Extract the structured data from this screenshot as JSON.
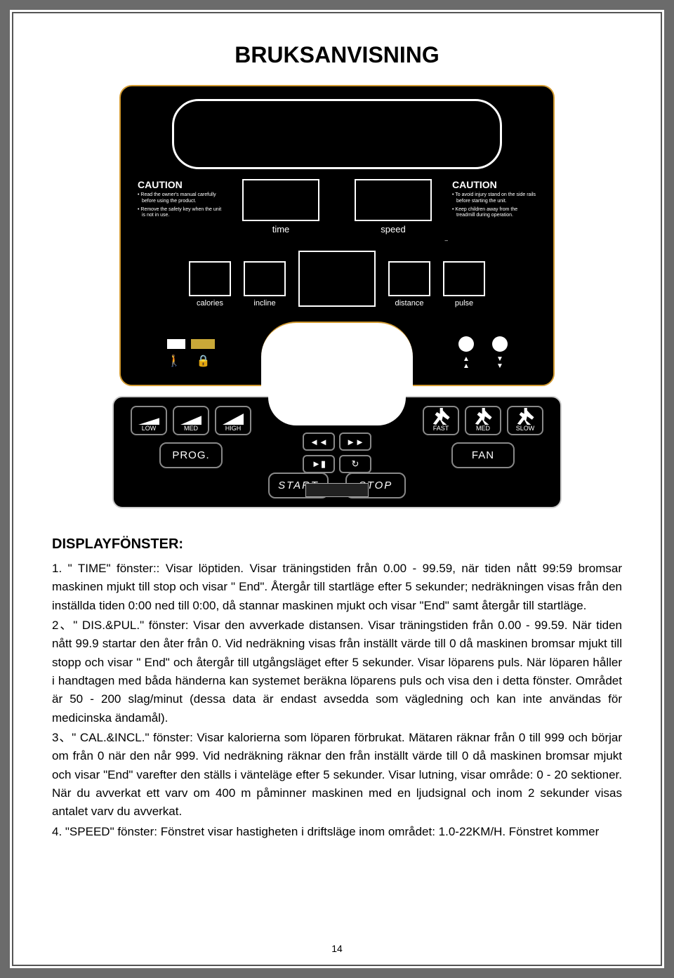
{
  "doc": {
    "title": "BRUKSANVISNING",
    "page_number": "14",
    "section_head": "DISPLAYFÖNSTER:"
  },
  "console": {
    "caution_left_title": "CAUTION",
    "caution_left_b1": "• Read the owner's manual carefully before using the product.",
    "caution_left_b2": "• Remove the safety key when the unit is not in use.",
    "caution_right_title": "CAUTION",
    "caution_right_b1": "• To avoid injury stand on the side rails before starting the unit.",
    "caution_right_b2": "• Keep children away from the treadmill during operation.",
    "label_time": "time",
    "label_speed": "speed",
    "label_calories": "calories",
    "label_incline": "incline",
    "label_distance": "distance",
    "label_pulse": "pulse"
  },
  "panel": {
    "incline_low": "LOW",
    "incline_med": "MED",
    "incline_high": "HIGH",
    "prog": "PROG.",
    "start": "START",
    "stop": "STOP",
    "fan": "FAN",
    "speed_fast": "FAST",
    "speed_med": "MED",
    "speed_slow": "SLOW",
    "media_rew": "◄◄",
    "media_ff": "►►",
    "media_play": "►▮",
    "media_loop": "↻"
  },
  "paragraphs": {
    "p1": "1. \" TIME\" fönster:: Visar löptiden. Visar träningstiden från 0.00 - 99.59, när tiden nått 99:59 bromsar maskinen mjukt till stop och visar \" End\". Återgår till startläge efter 5 sekunder; nedräkningen visas från den inställda tiden 0:00 ned till 0:00, då stannar maskinen mjukt och visar \"End\" samt återgår till startläge.",
    "p2": "2、\" DIS.&PUL.\" fönster: Visar den avverkade distansen. Visar träningstiden från 0.00 - 99.59. När tiden nått 99.9 startar den åter från 0. Vid nedräkning visas från inställt värde till 0 då maskinen bromsar mjukt till stopp och visar \" End\" och återgår till utgångsläget efter 5 sekunder. Visar löparens puls. När löparen håller i handtagen med båda händerna kan systemet beräkna löparens puls och visa den i detta fönster. Området är 50 - 200 slag/minut (dessa data är endast avsedda som vägledning och kan inte användas för medicinska ändamål).",
    "p3": "3、\" CAL.&INCL.\" fönster: Visar kalorierna som löparen förbrukat. Mätaren räknar från 0 till 999 och börjar om från 0 när den når 999. Vid nedräkning räknar den från inställt värde till 0 då maskinen bromsar mjukt och visar \"End\" varefter den ställs i vänteläge efter 5 sekunder. Visar lutning, visar område: 0 - 20 sektioner. När du avverkat ett varv om 400 m påminner maskinen med en ljudsignal och inom 2 sekunder visas antalet varv du avverkat.",
    "p4": "4. \"SPEED\" fönster: Fönstret visar hastigheten i driftsläge inom området: 1.0-22KM/H. Fönstret kommer"
  },
  "styling": {
    "page_border_color": "#6b6b6b",
    "console_border_color": "#d29a30",
    "console_bg": "#000000",
    "text_color": "#000000",
    "button_border": "#888888"
  }
}
